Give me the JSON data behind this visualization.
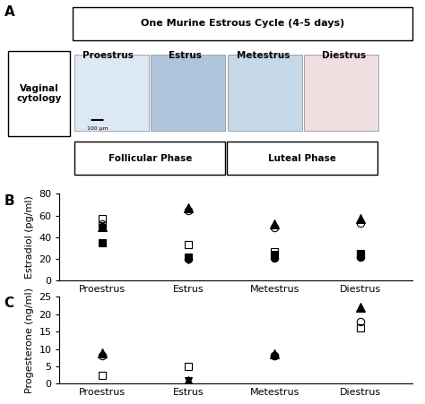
{
  "panel_A": {
    "title": "One Murine Estrous Cycle (4-5 days)",
    "phases": [
      "Proestrus",
      "Estrus",
      "Metestrus",
      "Diestrus"
    ],
    "phase_label": "Vaginal\ncytology",
    "follicular_label": "Follicular Phase",
    "luteal_label": "Luteal Phase"
  },
  "panel_B": {
    "ylabel": "Estradiol (pg/ml)",
    "label": "B",
    "ylim": [
      0,
      80
    ],
    "yticks": [
      0,
      20,
      40,
      60,
      80
    ],
    "categories": [
      "Proestrus",
      "Estrus",
      "Metestrus",
      "Diestrus"
    ],
    "data": {
      "triangle_filled": [
        50,
        67,
        52,
        57
      ],
      "circle_open": [
        52,
        65,
        49,
        53
      ],
      "square_open": [
        57,
        33,
        27,
        25
      ],
      "square_filled": [
        35,
        22,
        24,
        24
      ],
      "circle_filled": [
        50,
        20,
        21,
        22
      ],
      "triangle_down": [
        null,
        19,
        null,
        null
      ]
    }
  },
  "panel_C": {
    "ylabel": "Progesterone (ng/ml)",
    "label": "C",
    "ylim": [
      0,
      25
    ],
    "yticks": [
      0,
      5,
      10,
      15,
      20,
      25
    ],
    "categories": [
      "Proestrus",
      "Estrus",
      "Metestrus",
      "Diestrus"
    ],
    "data": {
      "triangle_filled": [
        9,
        1,
        8.5,
        22
      ],
      "circle_open": [
        8,
        null,
        8,
        18
      ],
      "square_open": [
        2.5,
        5,
        null,
        16
      ],
      "circle_filled": [
        null,
        null,
        8,
        null
      ],
      "triangle_down": [
        null,
        1,
        null,
        null
      ]
    }
  }
}
